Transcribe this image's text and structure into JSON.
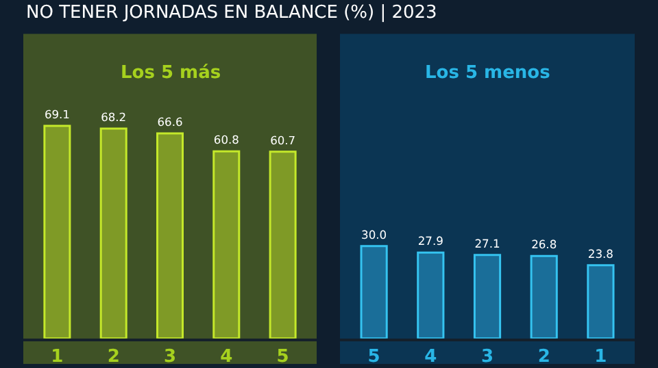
{
  "chart_data": [
    {
      "type": "bar",
      "title": "Los 5 más",
      "annotations": [
        "NO TENER JORNADAS EN BALANCE (%) | 2023"
      ],
      "categories": [
        "1",
        "2",
        "3",
        "4",
        "5"
      ],
      "series": [
        {
          "color": "#7f9a26",
          "values": [
            69.1,
            68.2,
            66.6,
            60.8,
            60.7
          ],
          "value_labels": [
            "69.1",
            "68.2",
            "66.6",
            "60.8",
            "60.7"
          ]
        }
      ]
    },
    {
      "type": "bar",
      "title": "Los 5 menos",
      "categories": [
        "5",
        "4",
        "3",
        "2",
        "1"
      ],
      "series": [
        {
          "color": "#1a6e99",
          "values": [
            30.0,
            27.9,
            27.1,
            26.8,
            23.8
          ],
          "value_labels": [
            "30.0",
            "27.9",
            "27.1",
            "26.8",
            "23.8"
          ]
        }
      ]
    }
  ]
}
